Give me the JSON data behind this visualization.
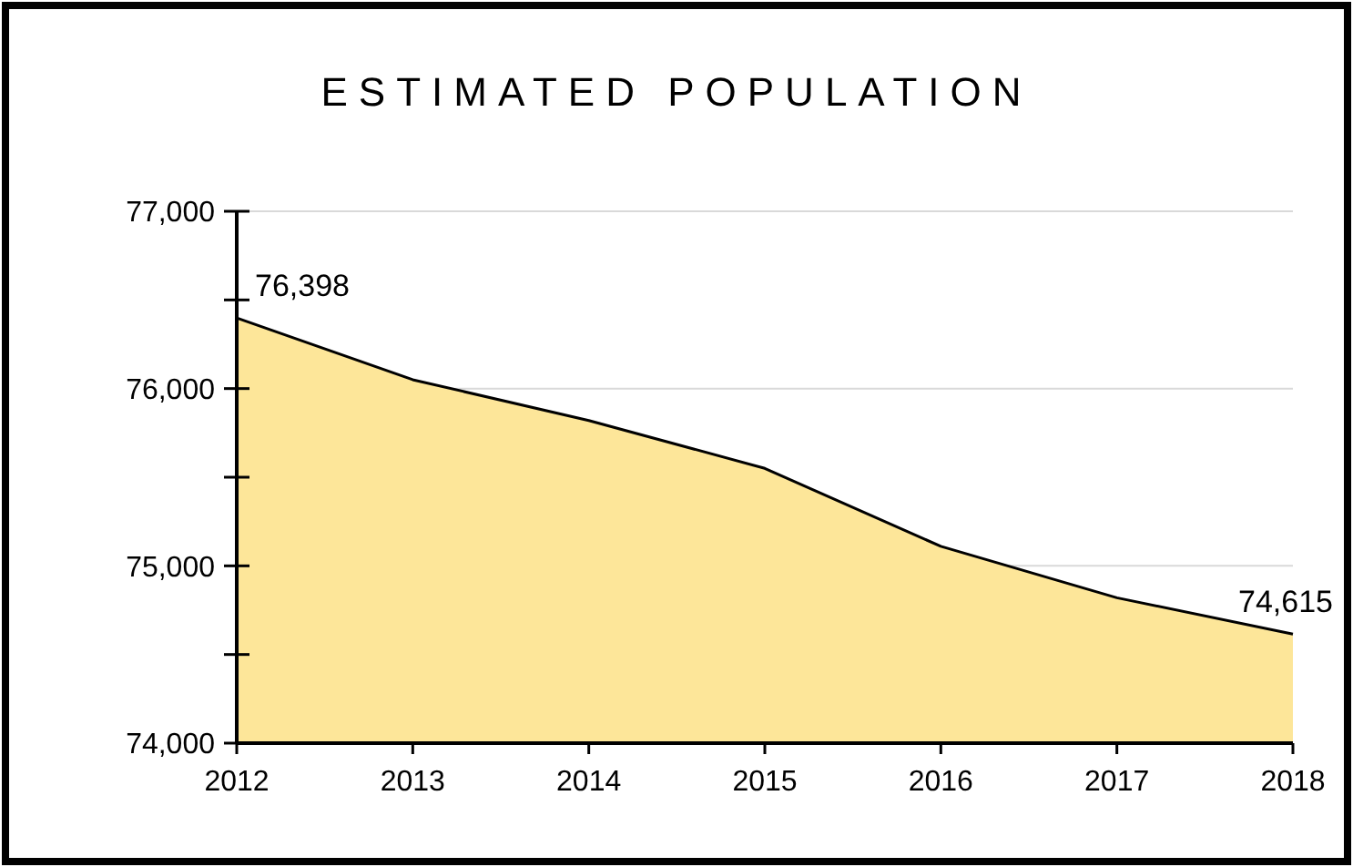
{
  "chart_data": {
    "type": "area",
    "title": "ESTIMATED POPULATION",
    "categories": [
      "2012",
      "2013",
      "2014",
      "2015",
      "2016",
      "2017",
      "2018"
    ],
    "series": [
      {
        "color": "#fde699",
        "values": [
          76398,
          76050,
          75820,
          75550,
          75110,
          74820,
          74615
        ],
        "value_labels": [
          "76,398",
          null,
          null,
          null,
          null,
          null,
          "74,615"
        ]
      }
    ],
    "ylim": [
      74000,
      77000
    ],
    "yticks": [
      {
        "value": 74000,
        "label": "74,000"
      },
      {
        "value": 74500,
        "label": null
      },
      {
        "value": 75000,
        "label": "75,000"
      },
      {
        "value": 75500,
        "label": null
      },
      {
        "value": 76000,
        "label": "76,000"
      },
      {
        "value": 76500,
        "label": null
      },
      {
        "value": 77000,
        "label": "77,000"
      }
    ],
    "grid": "y"
  }
}
